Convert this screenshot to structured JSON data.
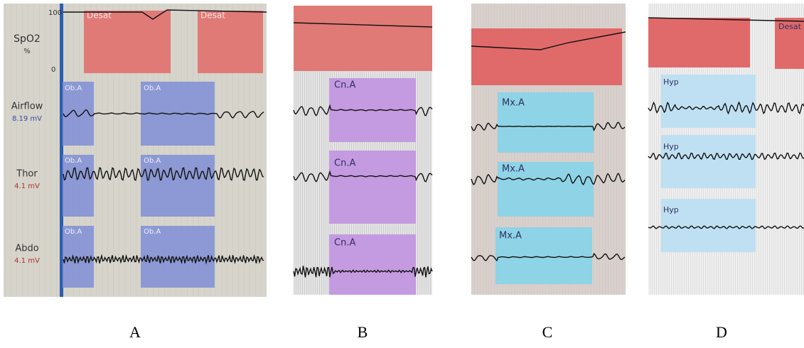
{
  "panels": [
    {
      "label": "A",
      "spo2": {
        "name": "SpO2",
        "unit": "%",
        "max": "100",
        "min": "0",
        "events": [
          "Desat",
          "Desat"
        ]
      },
      "channels": [
        {
          "name": "Airflow",
          "scale": "8.19 mV",
          "events": [
            "Ob.A",
            "Ob.A"
          ]
        },
        {
          "name": "Thor",
          "scale": "4.1 mV",
          "events": [
            "Ob.A",
            "Ob.A"
          ]
        },
        {
          "name": "Abdo",
          "scale": "4.1 mV",
          "events": [
            "Ob.A",
            "Ob.A"
          ]
        }
      ]
    },
    {
      "label": "B",
      "events": [
        "Cn.A",
        "Cn.A",
        "Cn.A"
      ]
    },
    {
      "label": "C",
      "events": [
        "Mx.A",
        "Mx.A",
        "Mx.A"
      ]
    },
    {
      "label": "D",
      "events": [
        "Desat",
        "Hyp",
        "Hyp",
        "Hyp"
      ]
    }
  ]
}
